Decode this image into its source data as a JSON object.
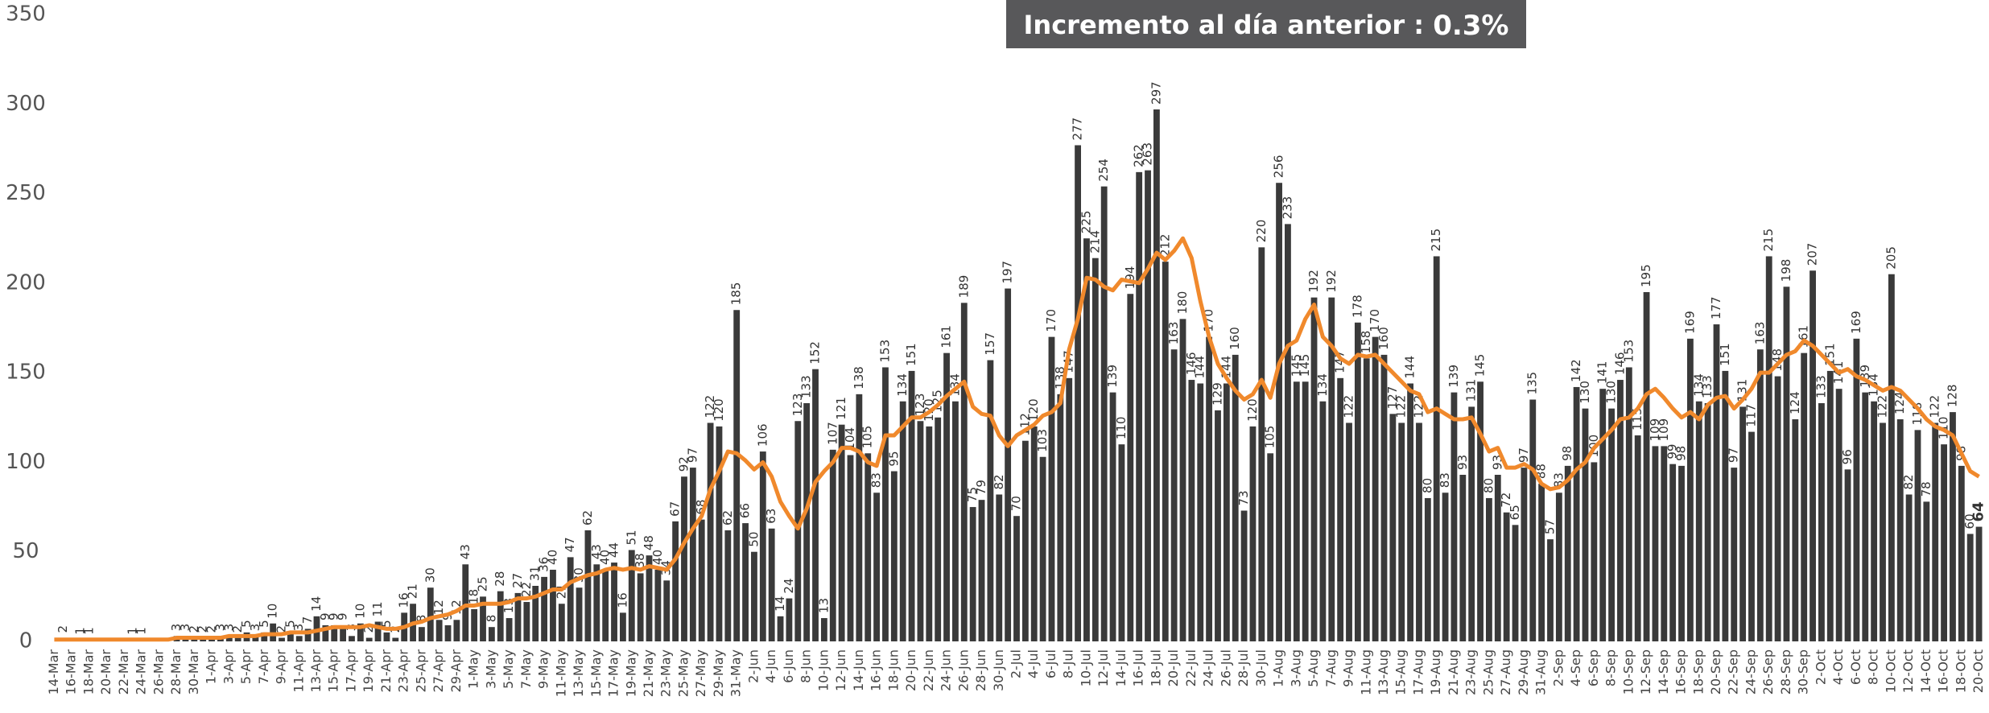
{
  "chart_data": {
    "type": "bar",
    "title": "Incremento al día anterior :",
    "title_value": "0.3%",
    "ylim": [
      0,
      350
    ],
    "yticks": [
      0,
      50,
      100,
      150,
      200,
      250,
      300,
      350
    ],
    "categories": [
      "14-Mar",
      null,
      "16-Mar",
      null,
      "18-Mar",
      null,
      "20-Mar",
      null,
      "22-Mar",
      null,
      "24-Mar",
      null,
      "26-Mar",
      null,
      "28-Mar",
      null,
      "30-Mar",
      null,
      "1-Apr",
      null,
      "3-Apr",
      null,
      "5-Apr",
      null,
      "7-Apr",
      null,
      "9-Apr",
      null,
      "11-Apr",
      null,
      "13-Apr",
      null,
      "15-Apr",
      null,
      "17-Apr",
      null,
      "19-Apr",
      null,
      "21-Apr",
      null,
      "23-Apr",
      null,
      "25-Apr",
      null,
      "27-Apr",
      null,
      "29-Apr",
      null,
      "1-May",
      null,
      "3-May",
      null,
      "5-May",
      null,
      "7-May",
      null,
      "9-May",
      null,
      "11-May",
      null,
      "13-May",
      null,
      "15-May",
      null,
      "17-May",
      null,
      "19-May",
      null,
      "21-May",
      null,
      "23-May",
      null,
      "25-May",
      null,
      "27-May",
      null,
      "29-May",
      null,
      "31-May",
      null,
      "2-Jun",
      null,
      "4-Jun",
      null,
      "6-Jun",
      null,
      "8-Jun",
      null,
      "10-Jun",
      null,
      "12-Jun",
      null,
      "14-Jun",
      null,
      "16-Jun",
      null,
      "18-Jun",
      null,
      "20-Jun",
      null,
      "22-Jun",
      null,
      "24-Jun",
      null,
      "26-Jun",
      null,
      "28-Jun",
      null,
      "30-Jun",
      null,
      "2-Jul",
      null,
      "4-Jul",
      null,
      "6-Jul",
      null,
      "8-Jul",
      null,
      "10-Jul",
      null,
      "12-Jul",
      null,
      "14-Jul",
      null,
      "16-Jul",
      null,
      "18-Jul",
      null,
      "20-Jul",
      null,
      "22-Jul",
      null,
      "24-Jul",
      null,
      "26-Jul",
      null,
      "28-Jul",
      null,
      "30-Jul",
      null,
      "1-Aug",
      null,
      "3-Aug",
      null,
      "5-Aug",
      null,
      "7-Aug",
      null,
      "9-Aug",
      null,
      "11-Aug",
      null,
      "13-Aug",
      null,
      "15-Aug",
      null,
      "17-Aug",
      null,
      "19-Aug",
      null,
      "21-Aug",
      null,
      "23-Aug",
      null,
      "25-Aug",
      null,
      "27-Aug",
      null,
      "29-Aug",
      null,
      "31-Aug",
      null,
      "2-Sep",
      null,
      "4-Sep",
      null,
      "6-Sep",
      null,
      "8-Sep",
      null,
      "10-Sep",
      null,
      "12-Sep",
      null,
      "14-Sep",
      null,
      "16-Sep",
      null,
      "18-Sep",
      null,
      "20-Sep",
      null,
      "22-Sep",
      null,
      "24-Sep",
      null,
      "26-Sep",
      null,
      "28-Sep",
      null,
      "30-Sep",
      null,
      "2-Oct",
      null,
      "4-Oct",
      null,
      "6-Oct",
      null,
      "8-Oct",
      null,
      "10-Oct",
      null,
      "12-Oct",
      null,
      "14-Oct",
      null,
      "16-Oct",
      null,
      "18-Oct",
      null,
      "20-Oct"
    ],
    "series": [
      {
        "type": "bar",
        "color": "#3a3a3a",
        "values": [
          0,
          2,
          0,
          1,
          1,
          0,
          0,
          0,
          0,
          1,
          1,
          0,
          0,
          0,
          3,
          3,
          2,
          2,
          2,
          3,
          3,
          2,
          5,
          3,
          5,
          10,
          2,
          5,
          3,
          7,
          14,
          9,
          9,
          9,
          3,
          10,
          2,
          11,
          5,
          2,
          16,
          21,
          8,
          30,
          12,
          9,
          12,
          43,
          18,
          25,
          8,
          28,
          13,
          27,
          22,
          31,
          36,
          40,
          21,
          47,
          30,
          62,
          43,
          40,
          44,
          16,
          51,
          38,
          48,
          40,
          34,
          67,
          92,
          97,
          68,
          122,
          120,
          62,
          185,
          66,
          50,
          106,
          63,
          14,
          24,
          123,
          133,
          152,
          13,
          107,
          121,
          104,
          138,
          105,
          83,
          153,
          95,
          134,
          151,
          123,
          120,
          125,
          161,
          134,
          189,
          75,
          79,
          157,
          82,
          197,
          70,
          112,
          120,
          103,
          170,
          138,
          147,
          277,
          225,
          214,
          254,
          139,
          110,
          194,
          262,
          263,
          297,
          212,
          163,
          180,
          146,
          144,
          170,
          129,
          144,
          160,
          73,
          120,
          220,
          105,
          256,
          233,
          145,
          145,
          192,
          134,
          192,
          147,
          122,
          178,
          158,
          170,
          160,
          127,
          122,
          144,
          122,
          80,
          215,
          83,
          139,
          93,
          131,
          145,
          80,
          93,
          72,
          65,
          97,
          135,
          88,
          57,
          83,
          98,
          142,
          130,
          100,
          141,
          130,
          146,
          153,
          115,
          195,
          109,
          109,
          99,
          98,
          169,
          134,
          133,
          177,
          151,
          97,
          131,
          117,
          163,
          215,
          148,
          198,
          124,
          161,
          207,
          133,
          151,
          141,
          96,
          169,
          139,
          134,
          122,
          205,
          124,
          82,
          118,
          78,
          122,
          110,
          128,
          98,
          60,
          64
        ]
      },
      {
        "type": "line",
        "color": "#f0892c",
        "values": [
          1,
          1,
          1,
          1,
          1,
          1,
          1,
          1,
          1,
          1,
          1,
          1,
          1,
          1,
          2,
          2,
          2,
          2,
          2,
          2,
          3,
          3,
          3,
          3,
          4,
          4,
          4,
          5,
          5,
          5,
          6,
          7,
          8,
          8,
          8,
          8,
          9,
          8,
          7,
          7,
          8,
          10,
          11,
          13,
          14,
          15,
          17,
          20,
          20,
          21,
          21,
          21,
          22,
          24,
          24,
          25,
          27,
          29,
          29,
          33,
          35,
          37,
          38,
          40,
          41,
          40,
          41,
          40,
          42,
          41,
          40,
          46,
          55,
          63,
          70,
          85,
          95,
          106,
          105,
          101,
          96,
          100,
          92,
          78,
          70,
          63,
          74,
          89,
          95,
          100,
          108,
          108,
          106,
          100,
          98,
          115,
          115,
          120,
          125,
          125,
          128,
          132,
          137,
          141,
          145,
          131,
          127,
          126,
          115,
          109,
          115,
          118,
          121,
          126,
          128,
          133,
          163,
          180,
          203,
          202,
          198,
          196,
          202,
          201,
          200,
          208,
          217,
          213,
          218,
          225,
          214,
          190,
          170,
          155,
          147,
          140,
          135,
          138,
          146,
          136,
          155,
          165,
          168,
          180,
          188,
          170,
          165,
          158,
          155,
          160,
          159,
          160,
          155,
          150,
          145,
          140,
          138,
          128,
          130,
          127,
          124,
          124,
          125,
          116,
          106,
          108,
          97,
          97,
          99,
          96,
          88,
          85,
          86,
          90,
          96,
          100,
          108,
          113,
          118,
          124,
          125,
          130,
          138,
          141,
          136,
          130,
          125,
          128,
          124,
          132,
          136,
          137,
          130,
          135,
          141,
          150,
          150,
          155,
          160,
          162,
          168,
          165,
          160,
          155,
          150,
          152,
          148,
          146,
          143,
          140,
          142,
          140,
          135,
          130,
          124,
          120,
          118,
          115,
          105,
          95,
          92
        ]
      }
    ]
  }
}
